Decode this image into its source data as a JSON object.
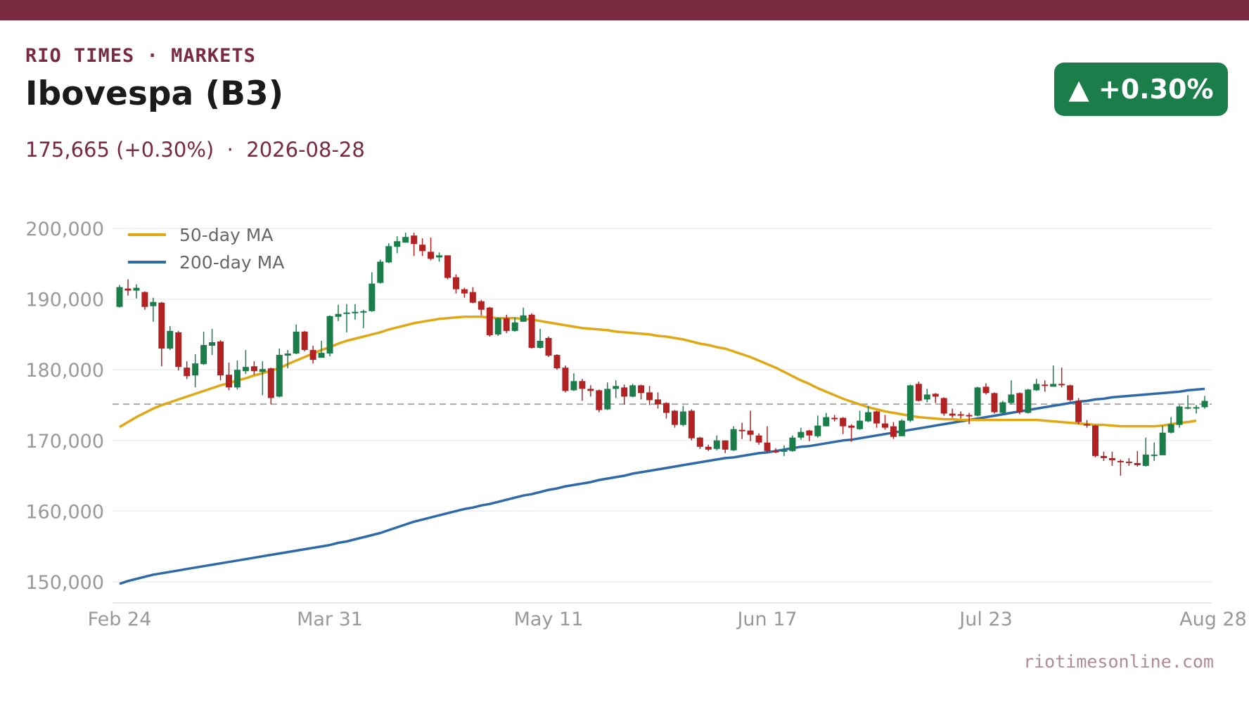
{
  "header": {
    "kicker": "RIO TIMES · MARKETS",
    "title": "Ibovespa (B3)",
    "subtitle": "175,665 (+0.30%)  ·  2026-08-28",
    "badge": "▲ +0.30%"
  },
  "footer": {
    "source": "riotimesonline.com"
  },
  "colors": {
    "brand": "#7a2a40",
    "up": "#1a7d4a",
    "down": "#b22222",
    "ma50": "#e0a814",
    "ma200": "#2e6aa8",
    "reference": "#aaaaaa",
    "grid": "#eeeeee",
    "tick": "#999999"
  },
  "chart_data": {
    "type": "candlestick",
    "ylim": [
      147000,
      202500
    ],
    "y_ticks": [
      150000,
      160000,
      170000,
      180000,
      190000,
      200000
    ],
    "y_tick_labels": [
      "150,000",
      "160,000",
      "170,000",
      "180,000",
      "190,000",
      "200,000"
    ],
    "x_tick_labels": [
      "Feb 24",
      "Mar 31",
      "May 11",
      "Jun 17",
      "Jul 23",
      "Aug 28"
    ],
    "x_tick_index": [
      0,
      25,
      51,
      77,
      103,
      130
    ],
    "reference_line": 175140,
    "grid": true,
    "legend_position": "top-left",
    "legend": [
      "50-day MA",
      "200-day MA"
    ],
    "candles": [
      [
        188900,
        191700,
        192000,
        188800
      ],
      [
        191500,
        191200,
        192800,
        190500
      ],
      [
        191200,
        191600,
        192100,
        190100
      ],
      [
        191000,
        188900,
        191100,
        188500
      ],
      [
        189000,
        189600,
        190200,
        186800
      ],
      [
        189500,
        183000,
        189600,
        180500
      ],
      [
        183000,
        185500,
        186200,
        182800
      ],
      [
        185300,
        180400,
        185500,
        179900
      ],
      [
        180300,
        179100,
        181200,
        178700
      ],
      [
        179200,
        180900,
        182200,
        177500
      ],
      [
        180800,
        183500,
        185400,
        180700
      ],
      [
        183400,
        183900,
        185800,
        182100
      ],
      [
        184000,
        179200,
        184200,
        178500
      ],
      [
        179300,
        177500,
        181000,
        177100
      ],
      [
        177500,
        180000,
        181300,
        177200
      ],
      [
        179800,
        180400,
        182800,
        179400
      ],
      [
        180500,
        179800,
        181200,
        179300
      ],
      [
        179700,
        180100,
        181200,
        176400
      ],
      [
        180200,
        176000,
        180300,
        175100
      ],
      [
        176200,
        182100,
        183000,
        176100
      ],
      [
        182000,
        182300,
        182800,
        180200
      ],
      [
        182300,
        185400,
        186400,
        182200
      ],
      [
        185400,
        182800,
        185500,
        182600
      ],
      [
        182800,
        181400,
        183400,
        180900
      ],
      [
        181700,
        182400,
        184100,
        181700
      ],
      [
        182300,
        187600,
        187700,
        181900
      ],
      [
        187500,
        187900,
        189200,
        186900
      ],
      [
        187900,
        188100,
        189300,
        185300
      ],
      [
        188000,
        188200,
        189300,
        187100
      ],
      [
        188100,
        188300,
        188500,
        185900
      ],
      [
        188300,
        192200,
        193800,
        188200
      ],
      [
        192300,
        195300,
        195600,
        192200
      ],
      [
        195200,
        197500,
        197900,
        195100
      ],
      [
        197400,
        198200,
        198900,
        196500
      ],
      [
        198000,
        198800,
        199400,
        198000
      ],
      [
        199000,
        197800,
        199400,
        196100
      ],
      [
        197700,
        196800,
        198600,
        196100
      ],
      [
        196700,
        195700,
        198700,
        195500
      ],
      [
        195900,
        196200,
        196600,
        195300
      ],
      [
        196200,
        193000,
        196200,
        192800
      ],
      [
        193100,
        191400,
        193500,
        190800
      ],
      [
        191400,
        190800,
        191600,
        190200
      ],
      [
        191000,
        189500,
        191700,
        189400
      ],
      [
        189700,
        188500,
        189900,
        187700
      ],
      [
        188800,
        184900,
        188900,
        184700
      ],
      [
        185000,
        187300,
        187400,
        184800
      ],
      [
        187300,
        185500,
        187800,
        185200
      ],
      [
        185500,
        186700,
        187400,
        185400
      ],
      [
        186800,
        187700,
        188800,
        186800
      ],
      [
        187800,
        183100,
        188000,
        183000
      ],
      [
        183100,
        184100,
        185800,
        183000
      ],
      [
        184500,
        182000,
        184700,
        181800
      ],
      [
        182100,
        180200,
        182200,
        180000
      ],
      [
        180300,
        177000,
        180600,
        176800
      ],
      [
        177100,
        178400,
        179500,
        177000
      ],
      [
        178400,
        177300,
        178700,
        175600
      ],
      [
        177300,
        177000,
        177800,
        176200
      ],
      [
        177100,
        174300,
        177200,
        174000
      ],
      [
        174400,
        177300,
        178200,
        174300
      ],
      [
        177300,
        177700,
        178500,
        176000
      ],
      [
        177500,
        176200,
        177900,
        175100
      ],
      [
        176200,
        177800,
        178000,
        176100
      ],
      [
        177800,
        176700,
        177900,
        175800
      ],
      [
        176800,
        175700,
        177700,
        175000
      ],
      [
        175800,
        175100,
        176800,
        174500
      ],
      [
        175300,
        173900,
        175400,
        173100
      ],
      [
        174200,
        172200,
        174300,
        171800
      ],
      [
        172200,
        174100,
        174900,
        172000
      ],
      [
        174200,
        170300,
        174400,
        170000
      ],
      [
        170400,
        169100,
        170500,
        168800
      ],
      [
        169100,
        168700,
        169400,
        168500
      ],
      [
        168800,
        170000,
        170700,
        168600
      ],
      [
        170000,
        168700,
        170000,
        168200
      ],
      [
        168600,
        171600,
        172000,
        168500
      ],
      [
        171500,
        171400,
        172500,
        170200
      ],
      [
        171400,
        170800,
        174200,
        169900
      ],
      [
        170700,
        169700,
        171000,
        169400
      ],
      [
        169700,
        168500,
        172000,
        168300
      ],
      [
        168500,
        168300,
        168900,
        168200
      ],
      [
        168400,
        168600,
        169300,
        167800
      ],
      [
        168500,
        170400,
        170700,
        168400
      ],
      [
        170400,
        171200,
        171800,
        170100
      ],
      [
        171400,
        170700,
        171500,
        169900
      ],
      [
        170600,
        172100,
        173500,
        170400
      ],
      [
        172000,
        173300,
        173900,
        172000
      ],
      [
        173200,
        173100,
        173600,
        172700
      ],
      [
        173200,
        172000,
        173300,
        170900
      ],
      [
        172100,
        171800,
        172300,
        169800
      ],
      [
        171600,
        172800,
        174200,
        171500
      ],
      [
        172700,
        174000,
        174900,
        172600
      ],
      [
        174100,
        172400,
        174200,
        171800
      ],
      [
        172400,
        171800,
        173600,
        171500
      ],
      [
        172000,
        170500,
        172600,
        170200
      ],
      [
        170600,
        172800,
        173000,
        170600
      ],
      [
        172800,
        177800,
        177900,
        172600
      ],
      [
        178000,
        175600,
        178300,
        175500
      ],
      [
        175800,
        176500,
        177300,
        175400
      ],
      [
        176600,
        176200,
        176700,
        175300
      ],
      [
        176000,
        173800,
        176100,
        173500
      ],
      [
        173800,
        173500,
        174500,
        173200
      ],
      [
        173700,
        173500,
        174100,
        173100
      ],
      [
        173600,
        173400,
        173900,
        172300
      ],
      [
        173500,
        177500,
        177600,
        173400
      ],
      [
        177600,
        176700,
        178100,
        176500
      ],
      [
        176700,
        174000,
        176800,
        173800
      ],
      [
        173900,
        175400,
        175600,
        173700
      ],
      [
        175300,
        176500,
        178500,
        175100
      ],
      [
        176700,
        174000,
        176800,
        173700
      ],
      [
        173900,
        177200,
        177300,
        173800
      ],
      [
        177100,
        178000,
        178700,
        177000
      ],
      [
        177900,
        177700,
        178500,
        176900
      ],
      [
        177600,
        178000,
        180600,
        177600
      ],
      [
        178000,
        177800,
        180300,
        177500
      ],
      [
        177800,
        175700,
        177900,
        175500
      ],
      [
        175600,
        172600,
        176000,
        172300
      ],
      [
        172300,
        172200,
        172900,
        171800
      ],
      [
        172100,
        167800,
        172200,
        167600
      ],
      [
        167800,
        167500,
        168400,
        167100
      ],
      [
        167500,
        167200,
        168400,
        166400
      ],
      [
        167100,
        167000,
        167300,
        165000
      ],
      [
        167000,
        166800,
        167500,
        166400
      ],
      [
        166800,
        166500,
        168500,
        166300
      ],
      [
        166400,
        168000,
        170400,
        166300
      ],
      [
        167900,
        168000,
        169700,
        167100
      ],
      [
        167900,
        171100,
        172100,
        167900
      ],
      [
        171100,
        172300,
        173300,
        171000
      ],
      [
        172200,
        174800,
        175000,
        171800
      ],
      [
        174600,
        174700,
        176400,
        174400
      ],
      [
        174700,
        174700,
        175000,
        173800
      ],
      [
        174700,
        175600,
        176300,
        174500
      ]
    ],
    "ma50": [
      171900,
      172600,
      173300,
      173900,
      174500,
      175000,
      175400,
      175800,
      176200,
      176600,
      177000,
      177400,
      177800,
      178100,
      178500,
      178800,
      179200,
      179500,
      179900,
      180200,
      180800,
      181300,
      181800,
      182300,
      182800,
      183200,
      183700,
      184100,
      184400,
      184700,
      185000,
      185300,
      185700,
      186000,
      186300,
      186600,
      186800,
      187000,
      187200,
      187300,
      187400,
      187500,
      187500,
      187500,
      187400,
      187300,
      187300,
      187300,
      187200,
      187100,
      186900,
      186700,
      186500,
      186300,
      186100,
      185900,
      185800,
      185700,
      185600,
      185400,
      185300,
      185200,
      185100,
      185000,
      184800,
      184700,
      184500,
      184300,
      184000,
      183700,
      183500,
      183200,
      183000,
      182600,
      182200,
      181800,
      181300,
      180800,
      180300,
      179700,
      179100,
      178500,
      178000,
      177400,
      176900,
      176400,
      175900,
      175500,
      175100,
      174700,
      174400,
      174100,
      173900,
      173700,
      173500,
      173300,
      173200,
      173100,
      173000,
      173000,
      172900,
      172900,
      172900,
      172900,
      172900,
      172900,
      172900,
      172900,
      172900,
      172900,
      172800,
      172700,
      172600,
      172500,
      172400,
      172300,
      172200,
      172200,
      172100,
      172000,
      172000,
      172000,
      172000,
      172000,
      172100,
      172300,
      172500,
      172600,
      172800
    ],
    "ma200": [
      149700,
      150100,
      150400,
      150700,
      151000,
      151200,
      151400,
      151600,
      151800,
      152000,
      152200,
      152400,
      152600,
      152800,
      153000,
      153200,
      153400,
      153600,
      153800,
      154000,
      154200,
      154400,
      154600,
      154800,
      155000,
      155200,
      155500,
      155700,
      156000,
      156300,
      156600,
      156900,
      157300,
      157700,
      158100,
      158500,
      158800,
      159100,
      159400,
      159700,
      160000,
      160300,
      160500,
      160800,
      161000,
      161300,
      161600,
      161900,
      162200,
      162400,
      162700,
      163000,
      163200,
      163500,
      163700,
      163900,
      164100,
      164400,
      164600,
      164800,
      165000,
      165300,
      165500,
      165700,
      165900,
      166100,
      166300,
      166500,
      166700,
      166900,
      167100,
      167300,
      167500,
      167600,
      167800,
      168000,
      168200,
      168300,
      168500,
      168700,
      168900,
      169100,
      169200,
      169400,
      169600,
      169800,
      170000,
      170100,
      170300,
      170500,
      170700,
      170900,
      171100,
      171300,
      171500,
      171700,
      171900,
      172100,
      172300,
      172500,
      172700,
      172900,
      173100,
      173300,
      173500,
      173700,
      173900,
      174100,
      174300,
      174500,
      174700,
      174900,
      175100,
      175300,
      175500,
      175600,
      175800,
      175900,
      176100,
      176200,
      176300,
      176400,
      176500,
      176600,
      176700,
      176800,
      176900,
      177100,
      177200,
      177300
    ]
  }
}
